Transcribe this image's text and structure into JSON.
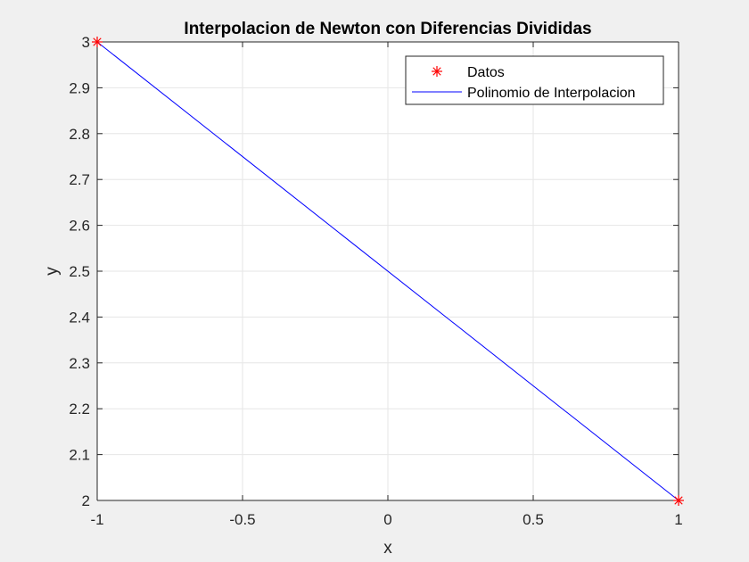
{
  "chart_data": {
    "type": "line",
    "title": "Interpolacion de Newton con Diferencias Divididas",
    "xlabel": "x",
    "ylabel": "y",
    "xlim": [
      -1,
      1
    ],
    "ylim": [
      2,
      3
    ],
    "xticks": [
      -1,
      -0.5,
      0,
      0.5,
      1
    ],
    "xtick_labels": [
      "-1",
      "-0.5",
      "0",
      "0.5",
      "1"
    ],
    "yticks": [
      2,
      2.1,
      2.2,
      2.3,
      2.4,
      2.5,
      2.6,
      2.7,
      2.8,
      2.9,
      3
    ],
    "ytick_labels": [
      "2",
      "2.1",
      "2.2",
      "2.3",
      "2.4",
      "2.5",
      "2.6",
      "2.7",
      "2.8",
      "2.9",
      "3"
    ],
    "grid": true,
    "legend_position": "top-right",
    "series": [
      {
        "name": "Datos",
        "kind": "marker",
        "marker": "asterisk",
        "color": "#ff0000",
        "x": [
          -1,
          1
        ],
        "y": [
          3,
          2
        ]
      },
      {
        "name": "Polinomio de Interpolacion",
        "kind": "line",
        "color": "#0000ff",
        "x": [
          -1,
          1
        ],
        "y": [
          3,
          2
        ]
      }
    ]
  }
}
